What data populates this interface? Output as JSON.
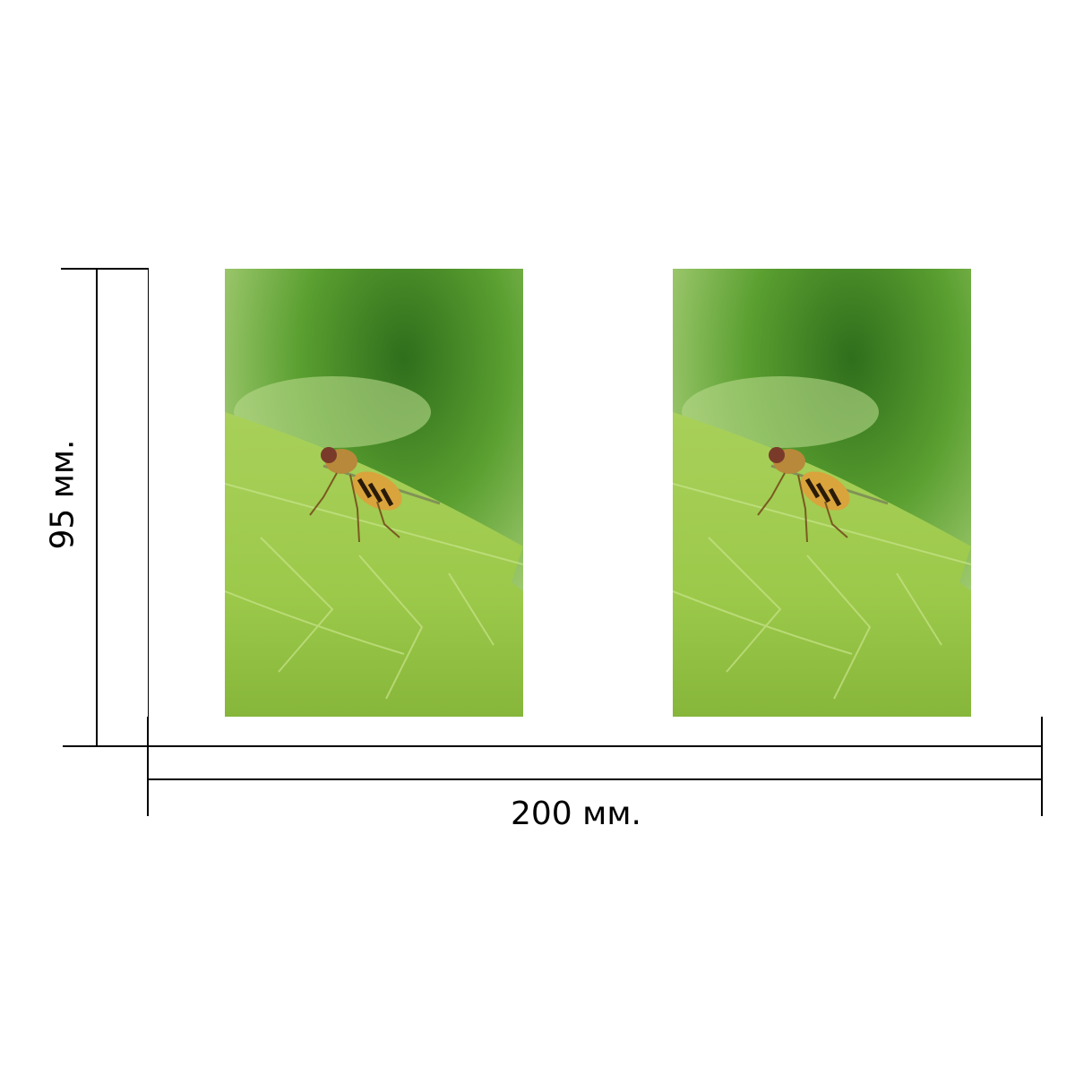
{
  "dimensions": {
    "width_label": "200 мм.",
    "height_label": "95 мм."
  },
  "photos": [
    {
      "subject": "hoverfly-on-leaf"
    },
    {
      "subject": "hoverfly-on-leaf"
    }
  ],
  "colors": {
    "leaf": "#9cc94a",
    "background_blur": "#4f9a2a",
    "line": "#000000"
  }
}
